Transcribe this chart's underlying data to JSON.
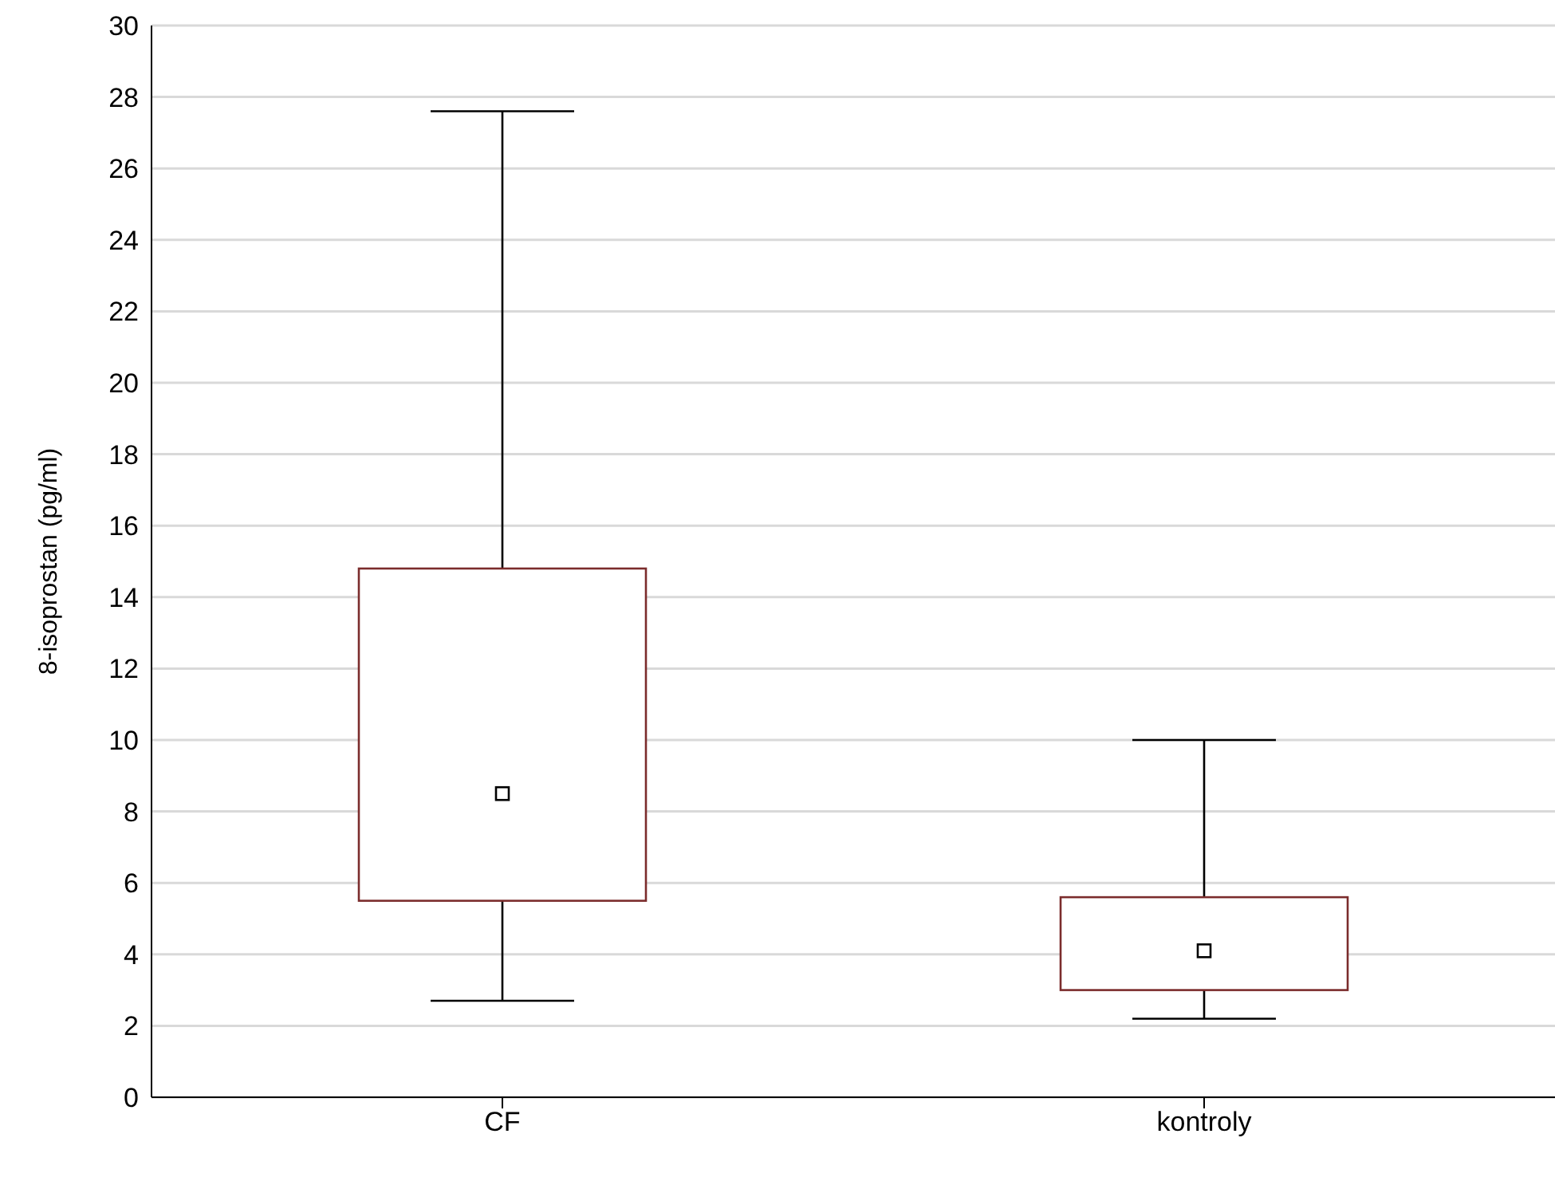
{
  "chart_data": {
    "type": "box",
    "ylabel": "8-isoprostan (pg/ml)",
    "categories": [
      "CF",
      "kontroly"
    ],
    "boxes": [
      {
        "low": 2.7,
        "q1": 5.5,
        "median": 8.5,
        "q3": 14.8,
        "high": 27.6
      },
      {
        "low": 2.2,
        "q1": 3.0,
        "median": 4.1,
        "q3": 5.6,
        "high": 10.0
      }
    ],
    "color": "#7b2c2c",
    "ylim": [
      0,
      30
    ],
    "yticks": [
      0,
      2,
      4,
      6,
      8,
      10,
      12,
      14,
      16,
      18,
      20,
      22,
      24,
      26,
      28,
      30
    ],
    "grid": "y"
  }
}
